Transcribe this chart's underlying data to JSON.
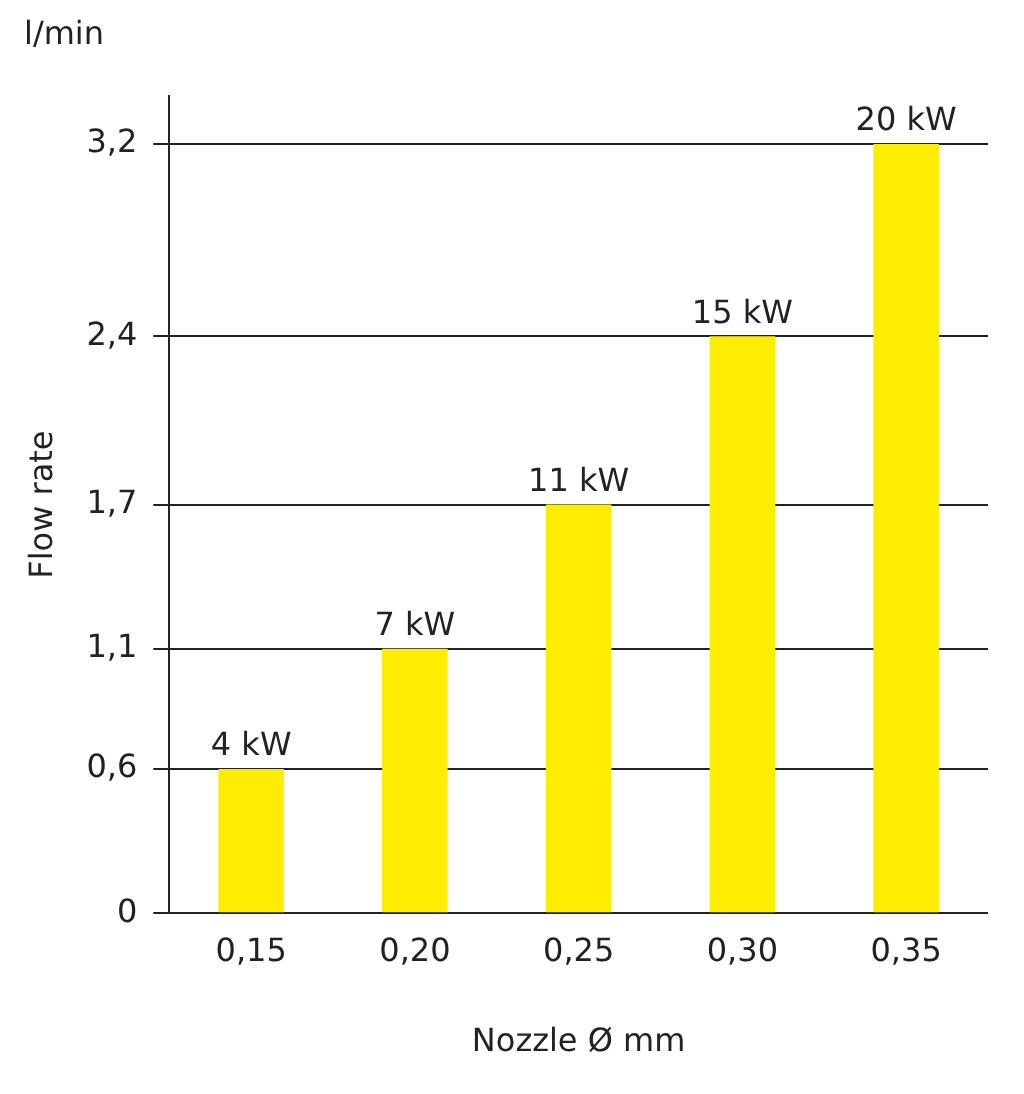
{
  "chart_data": {
    "type": "bar",
    "xlabel": "Nozzle Ø mm",
    "ylabel": "Flow rate",
    "annotations": [
      "l/min",
      {
        "text": "4 kW",
        "x": "0,15",
        "y": 0.6
      },
      {
        "text": "7 kW",
        "x": "0,20",
        "y": 1.1
      },
      {
        "text": "11 kW",
        "x": "0,25",
        "y": 1.7
      },
      {
        "text": "15 kW",
        "x": "0,30",
        "y": 2.4
      },
      {
        "text": "20 kW",
        "x": "0,35",
        "y": 3.2
      }
    ],
    "categories": [
      "0,15",
      "0,20",
      "0,25",
      "0,30",
      "0,35"
    ],
    "values": [
      0.6,
      1.1,
      1.7,
      2.4,
      3.2
    ],
    "color": "#ffed00",
    "ylim": [
      0,
      3.4
    ],
    "yticks": [
      {
        "value": 0,
        "label": "0"
      },
      {
        "value": 0.6,
        "label": "0,6"
      },
      {
        "value": 1.1,
        "label": "1,1"
      },
      {
        "value": 1.7,
        "label": "1,7"
      },
      {
        "value": 2.4,
        "label": "2,4"
      },
      {
        "value": 3.2,
        "label": "3,2"
      }
    ],
    "grid": "y",
    "legend": false
  }
}
